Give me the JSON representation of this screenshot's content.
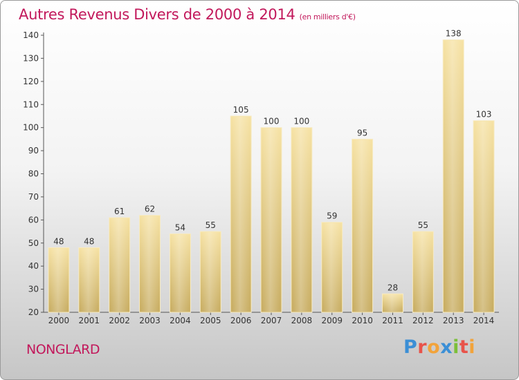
{
  "title": "Autres Revenus Divers de 2000 à 2014",
  "subtitle": "(en milliers d'€)",
  "commune": "NONGLARD",
  "logo": {
    "letters": [
      "P",
      "r",
      "o",
      "x",
      "i",
      "t",
      "i"
    ],
    "colors": [
      "#3b8fd6",
      "#e8534a",
      "#f2a33a",
      "#3b8fd6",
      "#7cbf3a",
      "#e8534a",
      "#f2a33a"
    ]
  },
  "chart_data": {
    "type": "bar",
    "categories": [
      "2000",
      "2001",
      "2002",
      "2003",
      "2004",
      "2005",
      "2006",
      "2007",
      "2008",
      "2009",
      "2010",
      "2011",
      "2012",
      "2013",
      "2014"
    ],
    "values": [
      48,
      48,
      61,
      62,
      54,
      55,
      105,
      100,
      100,
      59,
      95,
      28,
      55,
      138,
      103
    ],
    "ylim": [
      20,
      140
    ],
    "yticks": [
      20,
      30,
      40,
      50,
      60,
      70,
      80,
      90,
      100,
      110,
      120,
      130,
      140
    ],
    "grid": false,
    "bar_color": "#e8cf8a"
  }
}
